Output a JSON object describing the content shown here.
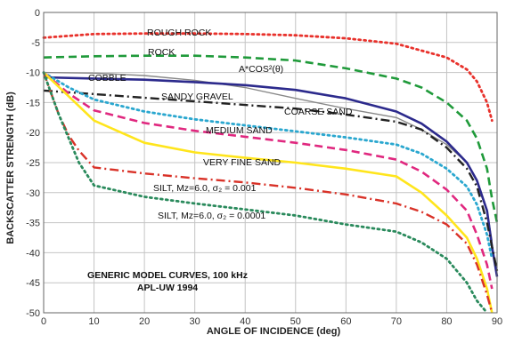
{
  "chart_data": {
    "type": "line",
    "title": "",
    "xlabel": "ANGLE OF INCIDENCE (deg)",
    "ylabel": "BACKSCATTER STRENGTH (dB)",
    "xlim": [
      0,
      90
    ],
    "ylim": [
      -50,
      0
    ],
    "grid": true,
    "xticks": [
      "0",
      "10",
      "20",
      "30",
      "40",
      "50",
      "60",
      "70",
      "80",
      "90"
    ],
    "yticks": [
      "0",
      "-5",
      "-10",
      "-15",
      "-20",
      "-25",
      "-30",
      "-35",
      "-40",
      "-45",
      "-50"
    ],
    "notes": [
      "GENERIC MODEL CURVES, 100 kHz",
      "APL-UW  1994"
    ],
    "series": [
      {
        "name": "ROUGH ROCK",
        "color": "#e8312b",
        "dash": "dotted",
        "x": [
          0,
          10,
          20,
          30,
          40,
          50,
          60,
          70,
          80,
          84,
          86,
          88,
          89
        ],
        "y": [
          -4.2,
          -3.6,
          -3.5,
          -3.5,
          -3.6,
          -3.8,
          -4.3,
          -5.2,
          -7.5,
          -9.5,
          -11.5,
          -15,
          -18
        ]
      },
      {
        "name": "ROCK",
        "color": "#1f9a3a",
        "dash": "dashed",
        "x": [
          0,
          10,
          20,
          30,
          40,
          50,
          60,
          70,
          75,
          80,
          84,
          86,
          88,
          89,
          90
        ],
        "y": [
          -7.5,
          -7.3,
          -7.2,
          -7.2,
          -7.5,
          -8.0,
          -9.3,
          -11.0,
          -12.5,
          -15,
          -18,
          -21,
          -26,
          -31,
          -35
        ]
      },
      {
        "name": "A*COS²(θ)",
        "color": "#888888",
        "dash": "solid",
        "x": [
          0,
          10,
          20,
          30,
          40,
          50,
          60,
          70,
          75,
          80,
          84,
          86,
          88,
          89
        ],
        "y": [
          -10,
          -10.1,
          -10.5,
          -11.3,
          -12.5,
          -14.3,
          -16,
          -17.5,
          -19.5,
          -22,
          -25,
          -28,
          -33,
          -38
        ]
      },
      {
        "name": "COBBLE",
        "color": "#2c2a8c",
        "dash": "solid",
        "x": [
          0,
          10,
          20,
          30,
          40,
          50,
          60,
          70,
          75,
          80,
          84,
          86,
          88,
          89,
          90
        ],
        "y": [
          -10.8,
          -11,
          -11.2,
          -11.6,
          -12.1,
          -12.9,
          -14.3,
          -16.5,
          -18.5,
          -21.5,
          -25,
          -28,
          -33,
          -39,
          -44
        ]
      },
      {
        "name": "SANDY GRAVEL",
        "color": "#222222",
        "dash": "dashdot",
        "x": [
          0,
          10,
          20,
          30,
          40,
          50,
          60,
          70,
          75,
          80,
          84,
          86,
          88,
          89,
          90
        ],
        "y": [
          -13,
          -13.6,
          -14.2,
          -14.8,
          -15.4,
          -16,
          -17,
          -18.2,
          -19.5,
          -22.5,
          -26,
          -29,
          -35,
          -39,
          -43
        ]
      },
      {
        "name": "COARSE SAND",
        "color": "#2aa7cf",
        "dash": "dotted",
        "x": [
          0,
          5,
          10,
          20,
          30,
          40,
          50,
          60,
          70,
          75,
          80,
          84,
          86,
          88,
          89
        ],
        "y": [
          -10,
          -12.5,
          -14.5,
          -16.5,
          -17.8,
          -18.8,
          -19.8,
          -20.8,
          -22,
          -23.5,
          -26,
          -29,
          -32,
          -37,
          -41
        ]
      },
      {
        "name": "MEDIUM SAND",
        "color": "#e0287f",
        "dash": "dashed",
        "x": [
          0,
          5,
          10,
          20,
          30,
          40,
          50,
          60,
          70,
          75,
          80,
          84,
          86,
          88,
          89
        ],
        "y": [
          -10,
          -13.5,
          -16.3,
          -18.4,
          -19.7,
          -20.7,
          -21.7,
          -22.9,
          -24.5,
          -26.5,
          -29.5,
          -33,
          -37,
          -42,
          -46
        ]
      },
      {
        "name": "VERY FINE SAND",
        "color": "#ffe51c",
        "dash": "solid",
        "x": [
          0,
          5,
          10,
          20,
          30,
          40,
          50,
          60,
          70,
          75,
          80,
          84,
          86,
          88,
          89
        ],
        "y": [
          -10,
          -14,
          -18,
          -21.7,
          -23.3,
          -24.2,
          -25,
          -26,
          -27.3,
          -30,
          -33.8,
          -37.5,
          -41,
          -46,
          -50
        ]
      },
      {
        "name": "SILT, Mz=6.0, σ₂ = 0.001",
        "color": "#d93228",
        "dash": "dashdot",
        "x": [
          0,
          3,
          5,
          7,
          10,
          20,
          30,
          40,
          50,
          60,
          70,
          75,
          80,
          84,
          86,
          88,
          89
        ],
        "y": [
          -10,
          -17,
          -20.5,
          -23,
          -25.8,
          -26.8,
          -27.6,
          -28.3,
          -29.2,
          -30.3,
          -31.8,
          -33.2,
          -35.3,
          -38.5,
          -42,
          -47,
          -50
        ]
      },
      {
        "name": "SILT, Mz=6.0, σ₂ = 0.0001",
        "color": "#2a8a5c",
        "dash": "dotted",
        "x": [
          0,
          3,
          5,
          7,
          10,
          20,
          30,
          40,
          50,
          60,
          70,
          75,
          80,
          84,
          86,
          88
        ],
        "y": [
          -10,
          -17,
          -21,
          -25,
          -28.8,
          -30.7,
          -31.8,
          -32.8,
          -33.8,
          -35.3,
          -36.5,
          -38.3,
          -41,
          -45,
          -48,
          -50
        ]
      }
    ]
  }
}
